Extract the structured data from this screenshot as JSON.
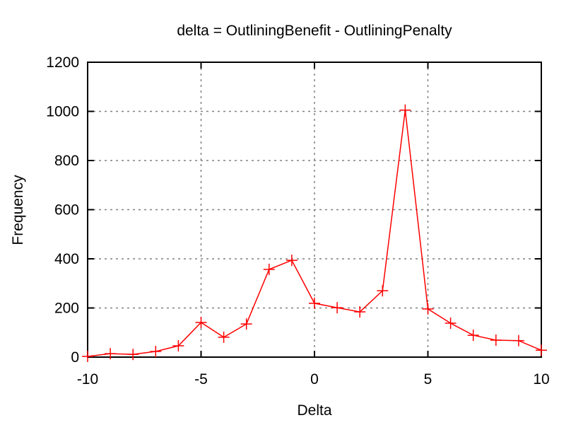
{
  "chart_data": {
    "type": "line",
    "title": "delta = OutliningBenefit - OutliningPenalty",
    "xlabel": "Delta",
    "ylabel": "Frequency",
    "xlim": [
      -10,
      10
    ],
    "ylim": [
      0,
      1200
    ],
    "xticks": [
      -10,
      -5,
      0,
      5,
      10
    ],
    "yticks": [
      0,
      200,
      400,
      600,
      800,
      1000,
      1200
    ],
    "grid": true,
    "series": [
      {
        "name": "Frequency",
        "color": "#ff0000",
        "marker": "plus",
        "x": [
          -10,
          -9,
          -8,
          -7,
          -6,
          -5,
          -4,
          -3,
          -2,
          -1,
          0,
          1,
          2,
          3,
          4,
          5,
          6,
          7,
          8,
          9,
          10
        ],
        "y": [
          3,
          14,
          11,
          23,
          46,
          141,
          81,
          135,
          357,
          394,
          219,
          201,
          184,
          270,
          1005,
          196,
          138,
          89,
          69,
          67,
          28
        ]
      }
    ]
  }
}
